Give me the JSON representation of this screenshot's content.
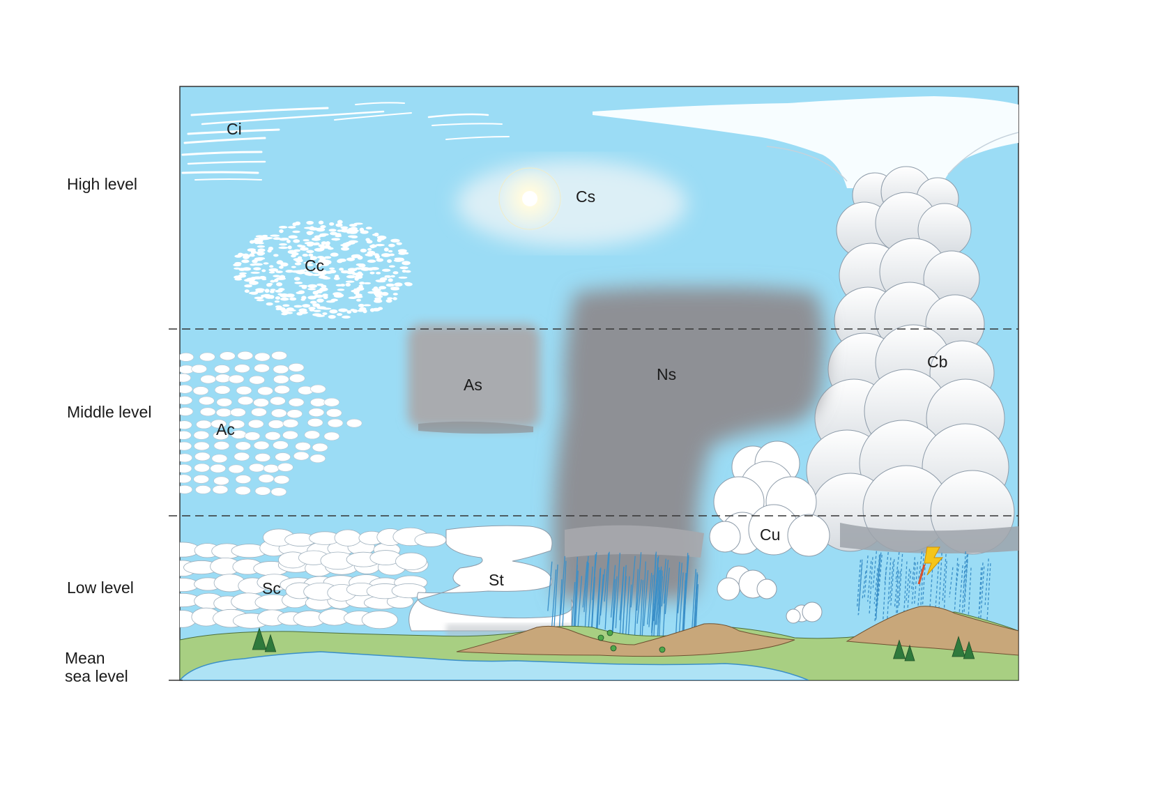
{
  "levels": {
    "high": "High level",
    "middle": "Middle level",
    "low": "Low level",
    "sea_line1": "Mean",
    "sea_line2": "sea level"
  },
  "clouds": {
    "ci": "Ci",
    "cs": "Cs",
    "cc": "Cc",
    "as": "As",
    "ns": "Ns",
    "cb": "Cb",
    "ac": "Ac",
    "cu": "Cu",
    "sc": "Sc",
    "st": "St"
  },
  "colors": {
    "sky": "#9bdcf5",
    "cloud_white": "#ffffff",
    "cloud_outline": "#8c9aa8",
    "nimbostratus": "#8e9095",
    "altostratus": "#a6a8ac",
    "cirrostratus_haze": "#d9eef6",
    "ground": "#a8cf82",
    "mountain": "#c8a77a",
    "water": "#aee3f5",
    "rain": "#3a8fc8",
    "lightning": "#f5c51a"
  },
  "icons": [
    "sun-icon",
    "lightning-icon",
    "rain-icon",
    "tree-icon"
  ]
}
